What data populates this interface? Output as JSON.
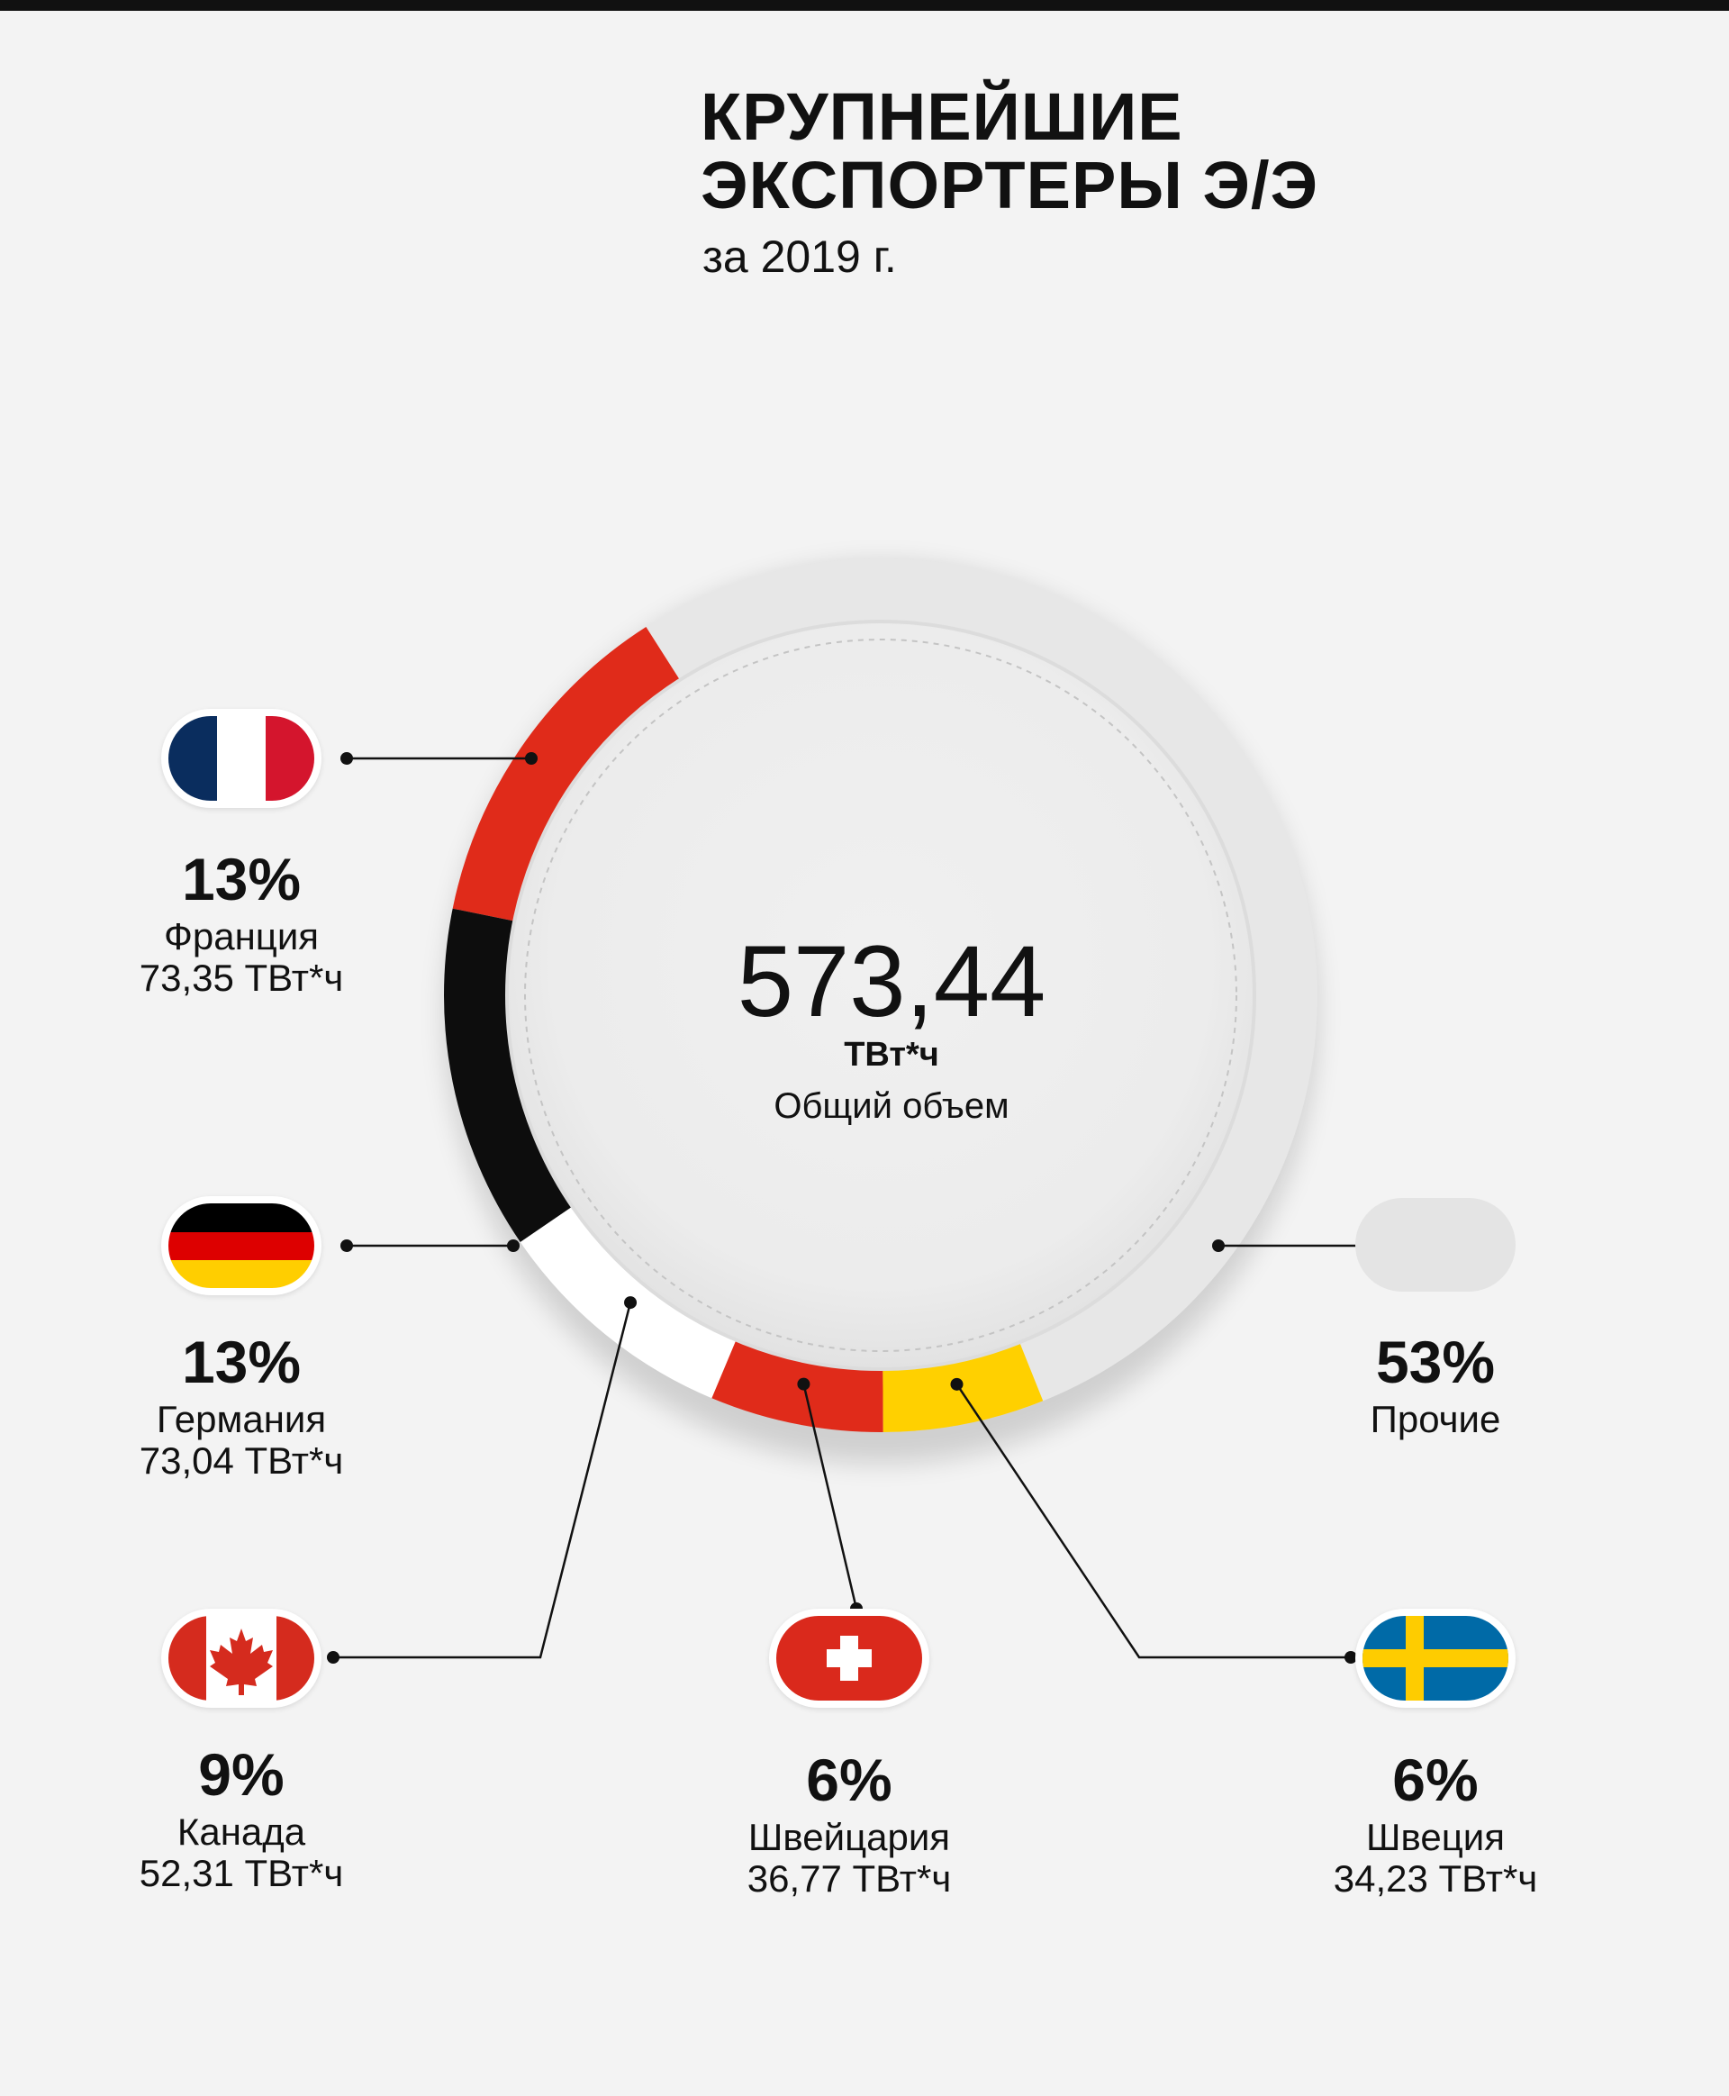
{
  "header": {
    "title_line1": "КРУПНЕЙШИЕ",
    "title_line2": "ЭКСПОРТЕРЫ Э/Э",
    "subtitle": "за 2019 г."
  },
  "center": {
    "total": "573,44",
    "unit": "ТВт*ч",
    "label": "Общий объем"
  },
  "items": [
    {
      "percent": "13%",
      "country": "Франция",
      "value": "73,35 ТВт*ч",
      "flag": "france-flag-icon"
    },
    {
      "percent": "13%",
      "country": "Германия",
      "value": "73,04 ТВт*ч",
      "flag": "germany-flag-icon"
    },
    {
      "percent": "9%",
      "country": "Канада",
      "value": "52,31 ТВт*ч",
      "flag": "canada-flag-icon"
    },
    {
      "percent": "6%",
      "country": "Швейцария",
      "value": "36,77 ТВт*ч",
      "flag": "switzerland-flag-icon"
    },
    {
      "percent": "6%",
      "country": "Швеция",
      "value": "34,23 ТВт*ч",
      "flag": "sweden-flag-icon"
    },
    {
      "percent": "53%",
      "country": "Прочие",
      "value": "",
      "flag": "others-placeholder-icon"
    }
  ],
  "chart_data": {
    "type": "pie",
    "total": 573.44,
    "unit": "ТВт*ч",
    "categories": [
      "Франция",
      "Германия",
      "Канада",
      "Швейцария",
      "Швеция",
      "Прочие"
    ],
    "values": [
      73.35,
      73.04,
      52.31,
      36.77,
      34.23,
      303.74
    ],
    "percents": [
      13,
      13,
      9,
      6,
      6,
      53
    ],
    "colors": [
      "#e02b1a",
      "#0d0d0d",
      "#ffffff",
      "#e02b1a",
      "#ffd000",
      "#e6e6e6"
    ]
  }
}
